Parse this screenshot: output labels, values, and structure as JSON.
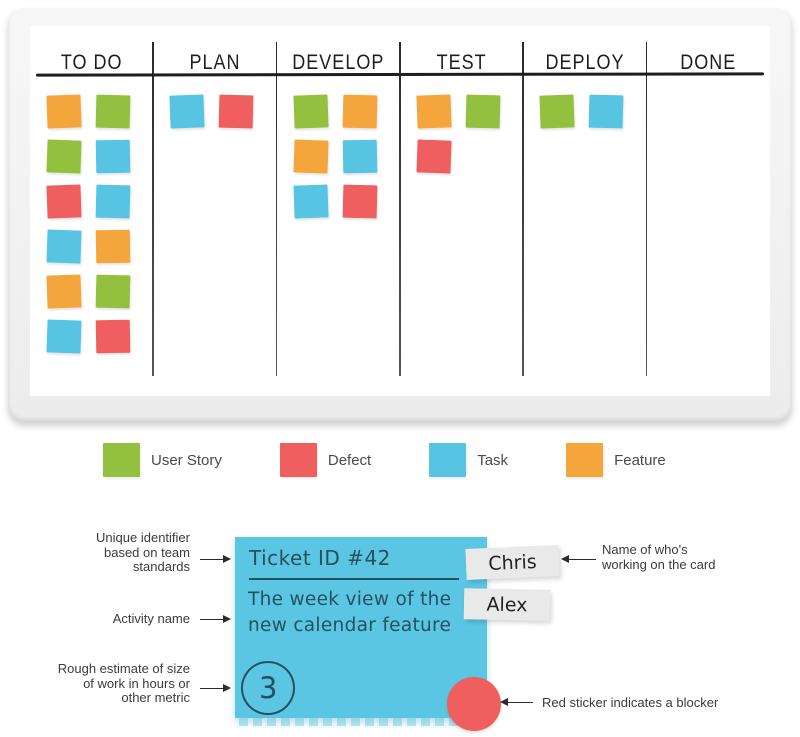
{
  "colors": {
    "green": "#93C13F",
    "red": "#F05F5F",
    "blue": "#58C4E4",
    "orange": "#F4A53B",
    "card": "#5BC6E3",
    "card_text": "#27505F",
    "tag_bg": "#E9E9E9",
    "ink": "#2B2B2B"
  },
  "board": {
    "columns": [
      {
        "id": "todo",
        "label": "TO DO",
        "stickies": [
          "orange",
          "green",
          "green",
          "blue",
          "red",
          "blue",
          "blue",
          "orange",
          "orange",
          "green",
          "blue",
          "red"
        ]
      },
      {
        "id": "plan",
        "label": "PLAN",
        "stickies": [
          "blue",
          "red"
        ]
      },
      {
        "id": "develop",
        "label": "DEVELOP",
        "stickies": [
          "green",
          "orange",
          "orange",
          "blue",
          "blue",
          "red"
        ]
      },
      {
        "id": "test",
        "label": "TEST",
        "stickies": [
          "orange",
          "green",
          "red"
        ]
      },
      {
        "id": "deploy",
        "label": "DEPLOY",
        "stickies": [
          "green",
          "blue"
        ]
      },
      {
        "id": "done",
        "label": "DONE",
        "stickies": []
      }
    ]
  },
  "legend": [
    {
      "label": "User Story",
      "color": "green"
    },
    {
      "label": "Defect",
      "color": "red"
    },
    {
      "label": "Task",
      "color": "blue"
    },
    {
      "label": "Feature",
      "color": "orange"
    }
  ],
  "card": {
    "ticket_id": "Ticket ID #42",
    "activity": "The week view of the new calendar feature",
    "estimate": "3",
    "assignees": [
      "Chris",
      "Alex"
    ]
  },
  "annotations": {
    "identifier": "Unique identifier based on team standards",
    "activity": "Activity name",
    "estimate": "Rough estimate of size of work in hours or other metric",
    "assignee": "Name of who's working on the card",
    "blocker": "Red sticker indicates a blocker"
  }
}
